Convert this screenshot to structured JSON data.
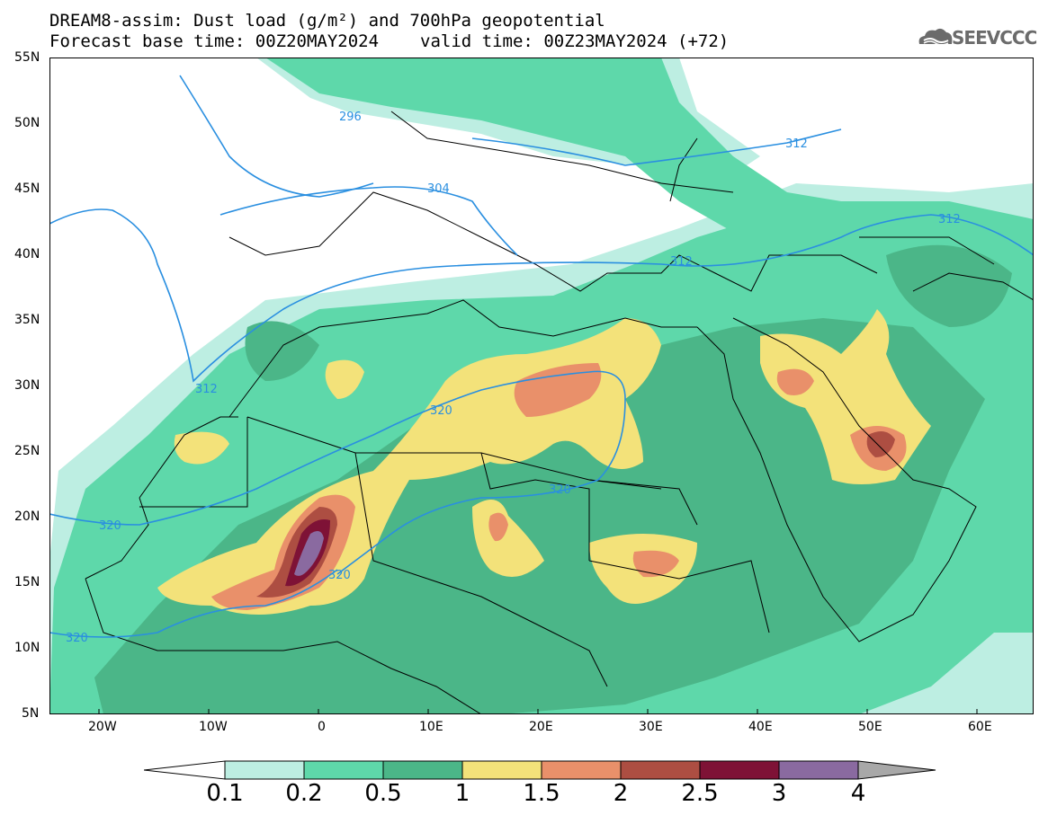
{
  "header": {
    "title_line1": "DREAM8-assim: Dust load (g/m²) and 700hPa geopotential",
    "base_time": "Forecast base time: 00Z20MAY2024",
    "valid_time": "valid time: 00Z23MAY2024 (+72)"
  },
  "logo": {
    "text": "SEEVCCC",
    "icon": "cloud-icon"
  },
  "map": {
    "lat_labels": [
      "55N",
      "50N",
      "45N",
      "40N",
      "35N",
      "30N",
      "25N",
      "20N",
      "15N",
      "10N",
      "5N"
    ],
    "lon_labels": [
      "20W",
      "10W",
      "0",
      "10E",
      "20E",
      "30E",
      "40E",
      "50E",
      "60E"
    ],
    "contour_labels": [
      "296",
      "304",
      "312",
      "312",
      "312",
      "312",
      "320",
      "320",
      "320",
      "320",
      "320"
    ]
  },
  "legend": {
    "levels": [
      "0.1",
      "0.2",
      "0.5",
      "1",
      "1.5",
      "2",
      "2.5",
      "3",
      "4"
    ],
    "colors": [
      "#bdeee2",
      "#5ed8aa",
      "#4bb688",
      "#f3e27a",
      "#e9906a",
      "#ad4e42",
      "#7e1236",
      "#8a6aa0",
      "#a8a8a8"
    ]
  }
}
